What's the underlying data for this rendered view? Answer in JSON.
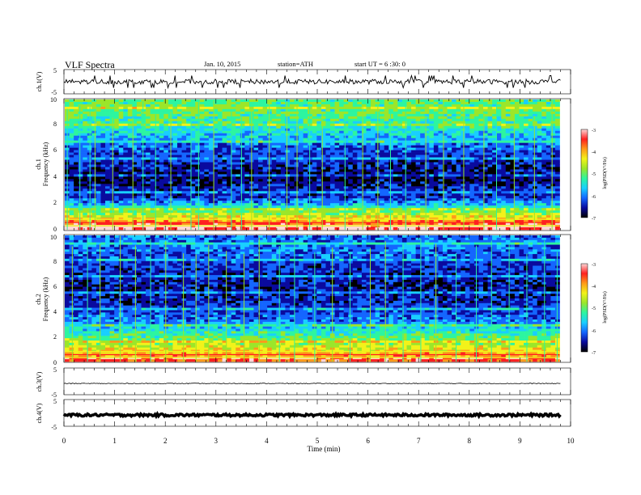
{
  "header": {
    "title": "VLF Spectra",
    "date": "Jan. 10, 2015",
    "station": "station=ATH",
    "start": "start UT = 6 :30: 0"
  },
  "colors": {
    "colormap": [
      "#000000",
      "#0a0a9e",
      "#1466ff",
      "#19cfff",
      "#2df5a0",
      "#9be62a",
      "#f2f21a",
      "#ff9a1a",
      "#ff2020",
      "#ffd7d7"
    ],
    "trace": "#000000"
  },
  "chart_data": [
    {
      "type": "line",
      "panel": "ch1-waveform",
      "ylabel": "ch.1(V)",
      "ylim": [
        -5,
        5
      ],
      "yticks": [
        "5",
        "-5"
      ],
      "series": [
        {
          "baseline": 0,
          "amplitude": 1,
          "spike_max": 2.5
        }
      ]
    },
    {
      "type": "heatmap",
      "panel": "ch1-spectrogram",
      "ylabel_top": "ch.1",
      "ylabel": "Frequency (kHz)",
      "ylim": [
        0,
        10
      ],
      "yticks": [
        "0",
        "2",
        "4",
        "6",
        "8",
        "10"
      ],
      "xlim": [
        0,
        10
      ],
      "data_end_min": 9.8,
      "colorbar": {
        "label": "log(PSD(V²/Hz)",
        "range": [
          -7,
          -3
        ],
        "ticks": [
          "-3",
          "-4",
          "-5",
          "-6",
          "-7"
        ]
      },
      "profile_log_psd": [
        {
          "khz": 0.0,
          "v": -3.1
        },
        {
          "khz": 0.5,
          "v": -3.6
        },
        {
          "khz": 1.0,
          "v": -4.4
        },
        {
          "khz": 1.5,
          "v": -5.1
        },
        {
          "khz": 2.0,
          "v": -5.8
        },
        {
          "khz": 2.5,
          "v": -6.4
        },
        {
          "khz": 3.0,
          "v": -6.4
        },
        {
          "khz": 4.0,
          "v": -6.8
        },
        {
          "khz": 5.0,
          "v": -6.5
        },
        {
          "khz": 6.0,
          "v": -6.3
        },
        {
          "khz": 7.0,
          "v": -5.8
        },
        {
          "khz": 8.0,
          "v": -5.3
        },
        {
          "khz": 9.0,
          "v": -5.0
        },
        {
          "khz": 10.0,
          "v": -5.1
        }
      ],
      "sferic_times_min": [
        0.05,
        0.3,
        0.5,
        0.6,
        0.95,
        1.35,
        1.55,
        1.8,
        2.1,
        2.5,
        2.65,
        2.95,
        3.3,
        3.5,
        3.7,
        4.05,
        4.4,
        4.6,
        4.85,
        5.1,
        5.55,
        5.9,
        6.2,
        6.45,
        6.75,
        7.15,
        7.5,
        7.9,
        8.3,
        8.55,
        8.9,
        9.3,
        9.65
      ]
    },
    {
      "type": "heatmap",
      "panel": "ch2-spectrogram",
      "ylabel_top": "ch.2",
      "ylabel": "Frequency (kHz)",
      "ylim": [
        0,
        10
      ],
      "yticks": [
        "0",
        "2",
        "4",
        "6",
        "8",
        "10"
      ],
      "xlim": [
        0,
        10
      ],
      "data_end_min": 9.8,
      "colorbar": {
        "label": "log(PSD(V²/Hz)",
        "range": [
          -7,
          -3
        ],
        "ticks": [
          "-3",
          "-4",
          "-5",
          "-6",
          "-7"
        ]
      },
      "profile_log_psd": [
        {
          "khz": 0.0,
          "v": -3.5
        },
        {
          "khz": 0.5,
          "v": -4.0
        },
        {
          "khz": 1.0,
          "v": -4.3
        },
        {
          "khz": 1.5,
          "v": -4.8
        },
        {
          "khz": 2.0,
          "v": -5.1
        },
        {
          "khz": 2.5,
          "v": -5.5
        },
        {
          "khz": 3.0,
          "v": -5.9
        },
        {
          "khz": 4.0,
          "v": -6.3
        },
        {
          "khz": 5.0,
          "v": -6.5
        },
        {
          "khz": 6.0,
          "v": -6.6
        },
        {
          "khz": 7.0,
          "v": -6.5
        },
        {
          "khz": 8.0,
          "v": -6.3
        },
        {
          "khz": 9.0,
          "v": -6.0
        },
        {
          "khz": 10.0,
          "v": -6.1
        }
      ],
      "sferic_times_min": [
        0.15,
        0.45,
        0.7,
        1.1,
        1.4,
        1.7,
        2.0,
        2.35,
        2.6,
        2.85,
        3.2,
        3.55,
        3.85,
        4.25,
        4.55,
        4.95,
        5.3,
        5.65,
        6.05,
        6.35,
        6.7,
        7.05,
        7.35,
        7.75,
        8.15,
        8.45,
        8.8,
        9.15,
        9.5,
        9.75
      ]
    },
    {
      "type": "line",
      "panel": "ch3-waveform",
      "ylabel": "ch.3(V)",
      "ylim": [
        -5,
        5
      ],
      "yticks": [
        "5",
        "-5"
      ],
      "series": [
        {
          "baseline": -0.8,
          "amplitude": 0.15
        }
      ]
    },
    {
      "type": "line",
      "panel": "ch4-waveform",
      "ylabel": "ch.4(V)",
      "ylim": [
        -5,
        5
      ],
      "yticks": [
        "5",
        "-5"
      ],
      "series": [
        {
          "baseline": -0.8,
          "amplitude": 0.45
        }
      ]
    }
  ],
  "xaxis": {
    "label": "Time (min)",
    "xlim": [
      0,
      10
    ],
    "ticks": [
      "0",
      "1",
      "2",
      "3",
      "4",
      "5",
      "6",
      "7",
      "8",
      "9",
      "10"
    ]
  }
}
